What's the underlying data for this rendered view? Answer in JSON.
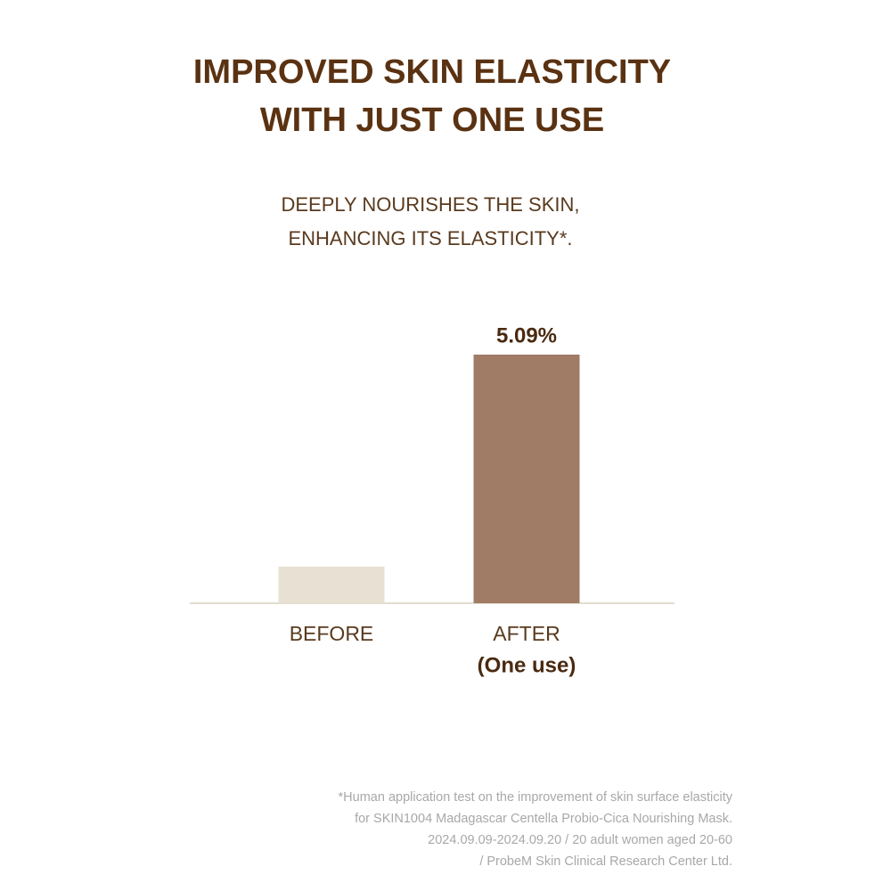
{
  "chart_data": {
    "type": "bar",
    "title_lines": [
      "IMPROVED SKIN ELASTICITY",
      "WITH JUST ONE USE"
    ],
    "subtitle_lines": [
      "DEEPLY NOURISHES THE SKIN,",
      "ENHANCING ITS ELASTICITY*."
    ],
    "categories": [
      "BEFORE",
      "AFTER"
    ],
    "category_sublabels": [
      null,
      "(One use)"
    ],
    "values": [
      0.75,
      5.09
    ],
    "value_labels": [
      null,
      "5.09%"
    ],
    "colors": [
      "#e8e1d3",
      "#a07b65"
    ],
    "footnote_lines": [
      "*Human application test on the improvement of skin surface elasticity",
      "for SKIN1004 Madagascar Centella Probio-Cica Nourishing Mask.",
      "2024.09.09-2024.09.20 / 20 adult women aged 20-60",
      "/ ProbeM Skin Clinical Research Center Ltd."
    ]
  }
}
